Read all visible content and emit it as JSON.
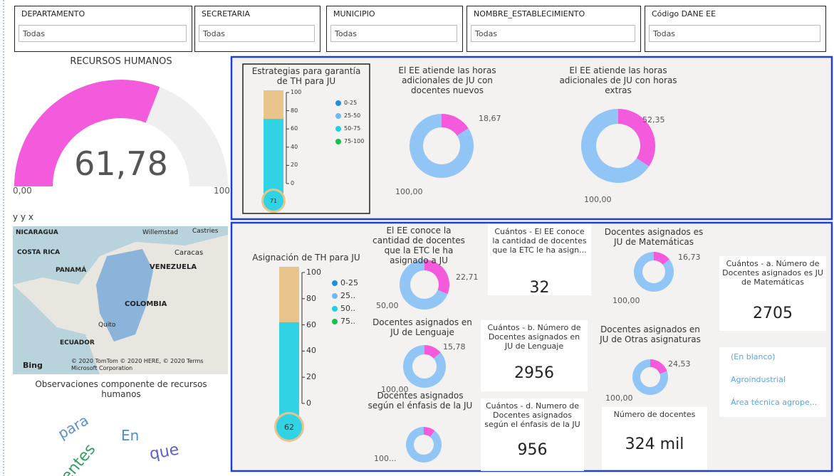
{
  "filters": [
    {
      "label": "DEPARTAMENTO",
      "value": "Todas"
    },
    {
      "label": "SECRETARIA",
      "value": "Todas"
    },
    {
      "label": "MUNICIPIO",
      "value": "Todas"
    },
    {
      "label": "NOMBRE_ESTABLECIMIENTO",
      "value": "Todas"
    },
    {
      "label": "Código DANE EE",
      "value": "Todas"
    }
  ],
  "gauge": {
    "title": "RECURSOS HUMANOS",
    "value": 61.78,
    "value_label": "61,78",
    "min": 0,
    "min_label": "0,00",
    "max": 100,
    "colors": [
      "#f35bdc",
      "#efefef"
    ]
  },
  "map": {
    "title": "y y x",
    "labels": [
      "NICARAGUA",
      "Willemstad",
      "Castries",
      "COSTA RICA",
      "Caracas",
      "PANAMÁ",
      "VENEZUELA",
      "COLOMBIA",
      "Quito",
      "ECUADOR",
      "Bing",
      "© 2020 TomTom © 2020 HERE, © 2020 Microsoft Corporation",
      "Terms"
    ]
  },
  "wordcloud": {
    "title": "Observaciones componente de recursos humanos",
    "words": [
      "para",
      "En",
      "que",
      "entes"
    ]
  },
  "thermometers": [
    {
      "title": "Estrategias para garantía de TH para JU",
      "value": 71,
      "ylim": [
        0,
        100
      ],
      "yticks": [
        0,
        20,
        40,
        60,
        80,
        100
      ],
      "legend": [
        {
          "name": "0-25",
          "color": "#1f8de0"
        },
        {
          "name": "25-50",
          "color": "#6fb9f5"
        },
        {
          "name": "50-75",
          "color": "#1ed0e8"
        },
        {
          "name": "75-100",
          "color": "#16c24a"
        }
      ],
      "colors": [
        "#e9c48a",
        "#2fd3e3"
      ]
    },
    {
      "title": "Asignación de TH para JU",
      "value": 62,
      "ylim": [
        0,
        100
      ],
      "yticks": [
        0,
        20,
        40,
        60,
        80,
        100
      ],
      "legend": [
        {
          "name": "0-25",
          "color": "#1f8de0"
        },
        {
          "name": "25..",
          "color": "#6fb9f5"
        },
        {
          "name": "50..",
          "color": "#1ed0e8"
        },
        {
          "name": "75..",
          "color": "#16c24a"
        }
      ],
      "colors": [
        "#e9c48a",
        "#2fd3e3"
      ]
    }
  ],
  "donuts": [
    {
      "title": "El EE atiende las horas adicionales de JU con docentes nuevos",
      "values": [
        18.67,
        100
      ],
      "value_labels": [
        "18,67",
        "100,00"
      ],
      "colors": [
        "#f35bdc",
        "#91c5f6"
      ]
    },
    {
      "title": "El EE atiende las horas adicionales de JU con horas extras",
      "values": [
        52.35,
        100
      ],
      "value_labels": [
        "52,35",
        "100,00"
      ],
      "colors": [
        "#f35bdc",
        "#91c5f6"
      ]
    },
    {
      "title": "El EE conoce la cantidad de docentes que la ETC le ha asignado a JU",
      "values": [
        22.71,
        50
      ],
      "value_labels": [
        "22,71",
        "50,00"
      ],
      "colors": [
        "#f35bdc",
        "#91c5f6"
      ]
    },
    {
      "title": "Docentes asignados es JU de Matemáticas",
      "values": [
        16.73,
        100
      ],
      "value_labels": [
        "16,73",
        "100,00"
      ],
      "colors": [
        "#f35bdc",
        "#91c5f6"
      ]
    },
    {
      "title": "Docentes asignados en JU de Lenguaje",
      "values": [
        15.78,
        100
      ],
      "value_labels": [
        "15,78",
        "100,00"
      ],
      "colors": [
        "#f35bdc",
        "#91c5f6"
      ]
    },
    {
      "title": "Docentes asignados en JU de Otras asignaturas",
      "values": [
        24.53,
        100
      ],
      "value_labels": [
        "24,53",
        "100,00"
      ],
      "colors": [
        "#f35bdc",
        "#91c5f6"
      ]
    },
    {
      "title": "Docentes asignados según el énfasis de la JU",
      "values": [
        12,
        100
      ],
      "value_labels": [
        null,
        "100..."
      ],
      "colors": [
        "#f35bdc",
        "#91c5f6"
      ]
    }
  ],
  "cards": [
    {
      "title": "Cuántos - El EE conoce la cantidad de docentes que la ETC le ha asign...",
      "value": 32
    },
    {
      "title": "Cuántos - a. Número de Docentes asignados es JU de Matemáticas",
      "value": 2705
    },
    {
      "title": "Cuántos - b. Número de Docentes asignados en JU de Lenguaje",
      "value": 2956
    },
    {
      "title": "Cuántos - d. Numero de Docentes asignados según el énfasis de la JU",
      "value": 956
    },
    {
      "title": "Número de docentes",
      "value": 324000,
      "value_label": "324 mil"
    }
  ],
  "slicer": {
    "items": [
      "(En blanco)",
      "Agroindustrial",
      "Área técnica agrope..."
    ]
  }
}
